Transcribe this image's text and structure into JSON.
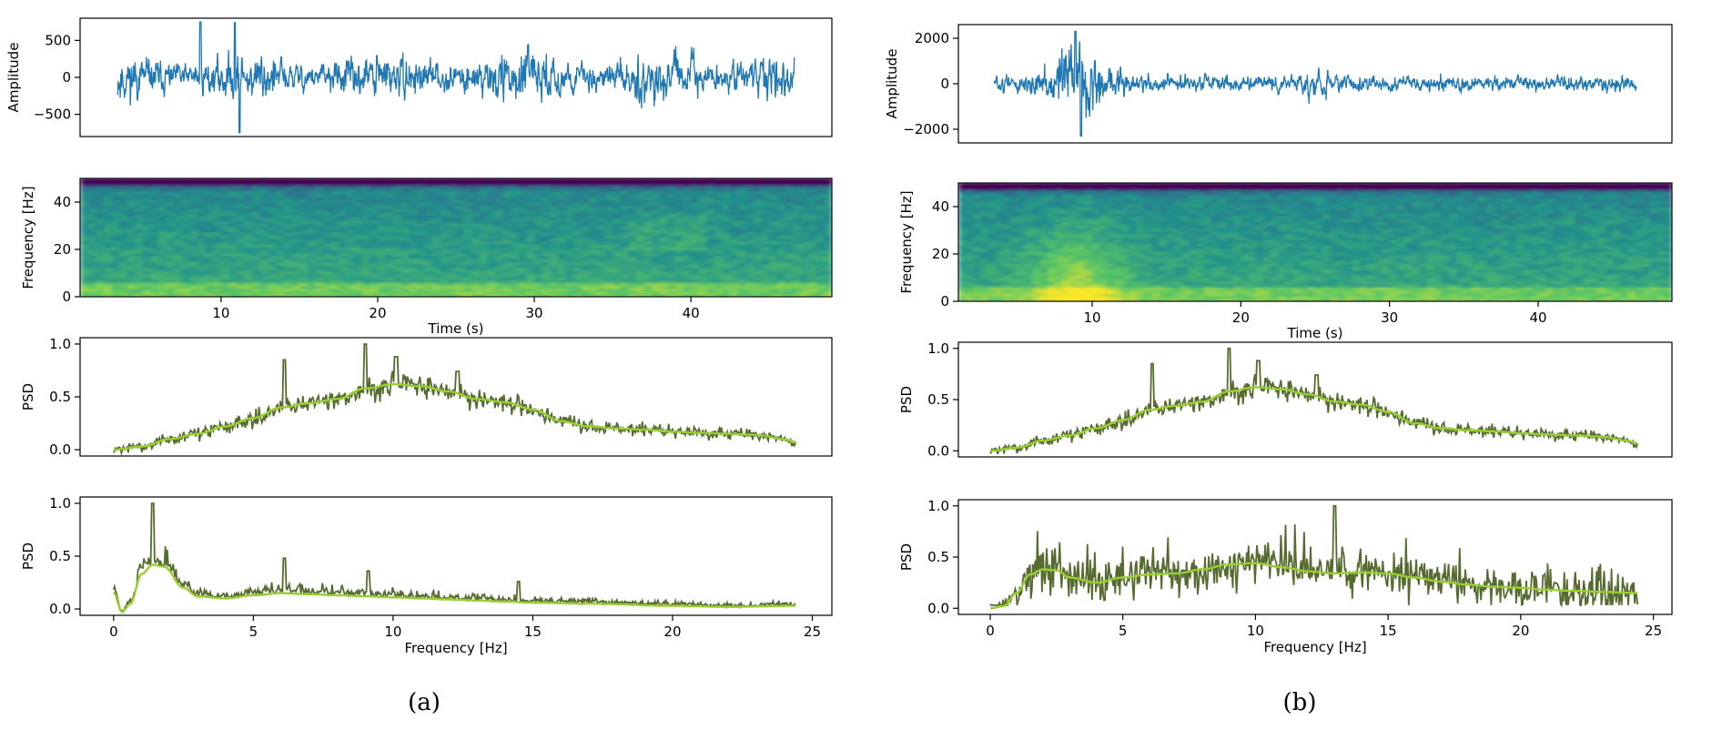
{
  "figure": {
    "panels": [
      {
        "caption": "(a)"
      },
      {
        "caption": "(b)"
      }
    ]
  },
  "colors": {
    "waveform": "#1f77b4",
    "psd_raw": "#556b2f",
    "psd_smooth": "#9acd32",
    "viridis": [
      "#440154",
      "#3b528b",
      "#21918c",
      "#5ec962",
      "#fde725"
    ]
  },
  "chart_data": [
    {
      "id": "a-waveform",
      "type": "line",
      "panel": "(a)",
      "ylabel": "Amplitude",
      "xlim": [
        0,
        50
      ],
      "ylim": [
        -800,
        800
      ],
      "yticks": [
        500,
        0,
        -500
      ],
      "ytick_labels": [
        "500",
        "0",
        "−500"
      ],
      "series": [
        {
          "values_summary": "noise-like waveform, mostly within ±400, peaks near +780 at t≈8 s and −760 at t≈11 s",
          "samples": 1600,
          "t_range": [
            2.5,
            47.5
          ]
        }
      ]
    },
    {
      "id": "a-spectrogram",
      "type": "heatmap",
      "panel": "(a)",
      "xlabel": "Time (s)",
      "ylabel": "Frequency [Hz]",
      "xlim": [
        1,
        49
      ],
      "ylim": [
        0,
        50
      ],
      "xticks": [
        10,
        20,
        30,
        40
      ],
      "xtick_labels": [
        "10",
        "20",
        "30",
        "40"
      ],
      "yticks": [
        0,
        20,
        40
      ],
      "ytick_labels": [
        "0",
        "20",
        "40"
      ],
      "colormap": "viridis",
      "description": "high energy (yellow) at 0–5 Hz, mid energy (green) up to ~45 Hz, low energy (blue/purple) near 50 Hz"
    },
    {
      "id": "a-psd-1",
      "type": "line",
      "panel": "(a)",
      "ylabel": "PSD",
      "xlim": [
        -1.2,
        25.7
      ],
      "ylim": [
        -0.06,
        1.06
      ],
      "yticks": [
        0.0,
        0.5,
        1.0
      ],
      "ytick_labels": [
        "0.0",
        "0.5",
        "1.0"
      ],
      "series": [
        {
          "role": "raw",
          "x_range": [
            0,
            24.4
          ],
          "peak": {
            "x": 9.0,
            "y": 1.0
          }
        },
        {
          "role": "smoothed",
          "points": [
            [
              0,
              0.0
            ],
            [
              1,
              0.03
            ],
            [
              2,
              0.1
            ],
            [
              3,
              0.15
            ],
            [
              4,
              0.22
            ],
            [
              5,
              0.3
            ],
            [
              6,
              0.4
            ],
            [
              7,
              0.44
            ],
            [
              8,
              0.48
            ],
            [
              9,
              0.58
            ],
            [
              10,
              0.62
            ],
            [
              11,
              0.6
            ],
            [
              12,
              0.55
            ],
            [
              13,
              0.48
            ],
            [
              14,
              0.45
            ],
            [
              15,
              0.38
            ],
            [
              16,
              0.27
            ],
            [
              17,
              0.22
            ],
            [
              18,
              0.2
            ],
            [
              19,
              0.19
            ],
            [
              20,
              0.17
            ],
            [
              21,
              0.16
            ],
            [
              22,
              0.15
            ],
            [
              23,
              0.14
            ],
            [
              24,
              0.1
            ],
            [
              24.4,
              0.07
            ]
          ]
        }
      ]
    },
    {
      "id": "a-psd-2",
      "type": "line",
      "panel": "(a)",
      "xlabel": "Frequency [Hz]",
      "ylabel": "PSD",
      "xlim": [
        -1.2,
        25.7
      ],
      "ylim": [
        -0.06,
        1.06
      ],
      "xticks": [
        0,
        5,
        10,
        15,
        20,
        25
      ],
      "xtick_labels": [
        "0",
        "5",
        "10",
        "15",
        "20",
        "25"
      ],
      "yticks": [
        0.0,
        0.5,
        1.0
      ],
      "ytick_labels": [
        "0.0",
        "0.5",
        "1.0"
      ],
      "series": [
        {
          "role": "raw",
          "x_range": [
            0,
            24.4
          ],
          "peak": {
            "x": 1.4,
            "y": 1.0
          }
        },
        {
          "role": "smoothed",
          "points": [
            [
              0,
              0.16
            ],
            [
              0.3,
              -0.03
            ],
            [
              0.6,
              0.05
            ],
            [
              1,
              0.33
            ],
            [
              1.4,
              0.42
            ],
            [
              1.8,
              0.4
            ],
            [
              2.5,
              0.2
            ],
            [
              3,
              0.12
            ],
            [
              4,
              0.1
            ],
            [
              5,
              0.13
            ],
            [
              6,
              0.15
            ],
            [
              7,
              0.14
            ],
            [
              8,
              0.13
            ],
            [
              9,
              0.12
            ],
            [
              10,
              0.11
            ],
            [
              11,
              0.1
            ],
            [
              12,
              0.09
            ],
            [
              13,
              0.08
            ],
            [
              14,
              0.07
            ],
            [
              15,
              0.06
            ],
            [
              17,
              0.05
            ],
            [
              20,
              0.03
            ],
            [
              22,
              0.02
            ],
            [
              24.4,
              0.03
            ]
          ]
        }
      ]
    },
    {
      "id": "b-waveform",
      "type": "line",
      "panel": "(b)",
      "ylabel": "Amplitude",
      "xlim": [
        0,
        50
      ],
      "ylim": [
        -2600,
        2600
      ],
      "yticks": [
        2000,
        0,
        -2000
      ],
      "ytick_labels": [
        "2000",
        "0",
        "−2000"
      ],
      "series": [
        {
          "values_summary": "burst between t≈5–12 s reaching ±2300, background within ±700",
          "samples": 1600,
          "t_range": [
            2.5,
            47.5
          ]
        }
      ]
    },
    {
      "id": "b-spectrogram",
      "type": "heatmap",
      "panel": "(b)",
      "xlabel": "Time (s)",
      "ylabel": "Frequency [Hz]",
      "xlim": [
        1,
        49
      ],
      "ylim": [
        0,
        50
      ],
      "xticks": [
        10,
        20,
        30,
        40
      ],
      "xtick_labels": [
        "10",
        "20",
        "30",
        "40"
      ],
      "yticks": [
        0,
        20,
        40
      ],
      "ytick_labels": [
        "0",
        "20",
        "40"
      ],
      "colormap": "viridis",
      "description": "strong yellow energy at t≈5–12 s, 0–30 Hz; green elsewhere; blue/purple near 50 Hz"
    },
    {
      "id": "b-psd-1",
      "type": "line",
      "panel": "(b)",
      "ylabel": "PSD",
      "xlim": [
        -1.2,
        25.7
      ],
      "ylim": [
        -0.06,
        1.06
      ],
      "yticks": [
        0.0,
        0.5,
        1.0
      ],
      "ytick_labels": [
        "0.0",
        "0.5",
        "1.0"
      ],
      "series": [
        {
          "role": "raw",
          "x_range": [
            0,
            24.4
          ],
          "peak": {
            "x": 9.0,
            "y": 1.0
          }
        },
        {
          "role": "smoothed",
          "points": [
            [
              0,
              0.0
            ],
            [
              1,
              0.03
            ],
            [
              2,
              0.1
            ],
            [
              3,
              0.15
            ],
            [
              4,
              0.22
            ],
            [
              5,
              0.3
            ],
            [
              6,
              0.4
            ],
            [
              7,
              0.44
            ],
            [
              8,
              0.48
            ],
            [
              9,
              0.58
            ],
            [
              10,
              0.62
            ],
            [
              11,
              0.6
            ],
            [
              12,
              0.55
            ],
            [
              13,
              0.48
            ],
            [
              14,
              0.45
            ],
            [
              15,
              0.38
            ],
            [
              16,
              0.27
            ],
            [
              17,
              0.22
            ],
            [
              18,
              0.2
            ],
            [
              19,
              0.19
            ],
            [
              20,
              0.17
            ],
            [
              21,
              0.16
            ],
            [
              22,
              0.15
            ],
            [
              23,
              0.14
            ],
            [
              24,
              0.1
            ],
            [
              24.4,
              0.07
            ]
          ]
        }
      ]
    },
    {
      "id": "b-psd-2",
      "type": "line",
      "panel": "(b)",
      "xlabel": "Frequency [Hz]",
      "ylabel": "PSD",
      "xlim": [
        -1.2,
        25.7
      ],
      "ylim": [
        -0.06,
        1.06
      ],
      "xticks": [
        0,
        5,
        10,
        15,
        20,
        25
      ],
      "xtick_labels": [
        "0",
        "5",
        "10",
        "15",
        "20",
        "25"
      ],
      "yticks": [
        0.0,
        0.5,
        1.0
      ],
      "ytick_labels": [
        "0.0",
        "0.5",
        "1.0"
      ],
      "series": [
        {
          "role": "raw",
          "x_range": [
            0,
            24.4
          ],
          "peak": {
            "x": 13.0,
            "y": 1.0
          }
        },
        {
          "role": "smoothed",
          "points": [
            [
              0,
              0.0
            ],
            [
              0.5,
              0.02
            ],
            [
              1,
              0.15
            ],
            [
              1.5,
              0.33
            ],
            [
              2,
              0.38
            ],
            [
              2.5,
              0.37
            ],
            [
              3,
              0.3
            ],
            [
              4,
              0.25
            ],
            [
              5,
              0.3
            ],
            [
              6,
              0.33
            ],
            [
              7,
              0.34
            ],
            [
              8,
              0.38
            ],
            [
              9,
              0.43
            ],
            [
              10,
              0.44
            ],
            [
              11,
              0.4
            ],
            [
              12,
              0.36
            ],
            [
              13,
              0.34
            ],
            [
              14,
              0.35
            ],
            [
              15,
              0.34
            ],
            [
              16,
              0.3
            ],
            [
              17,
              0.26
            ],
            [
              18,
              0.23
            ],
            [
              19,
              0.21
            ],
            [
              20,
              0.2
            ],
            [
              21,
              0.18
            ],
            [
              22,
              0.17
            ],
            [
              23,
              0.16
            ],
            [
              24.4,
              0.15
            ]
          ]
        }
      ]
    }
  ]
}
